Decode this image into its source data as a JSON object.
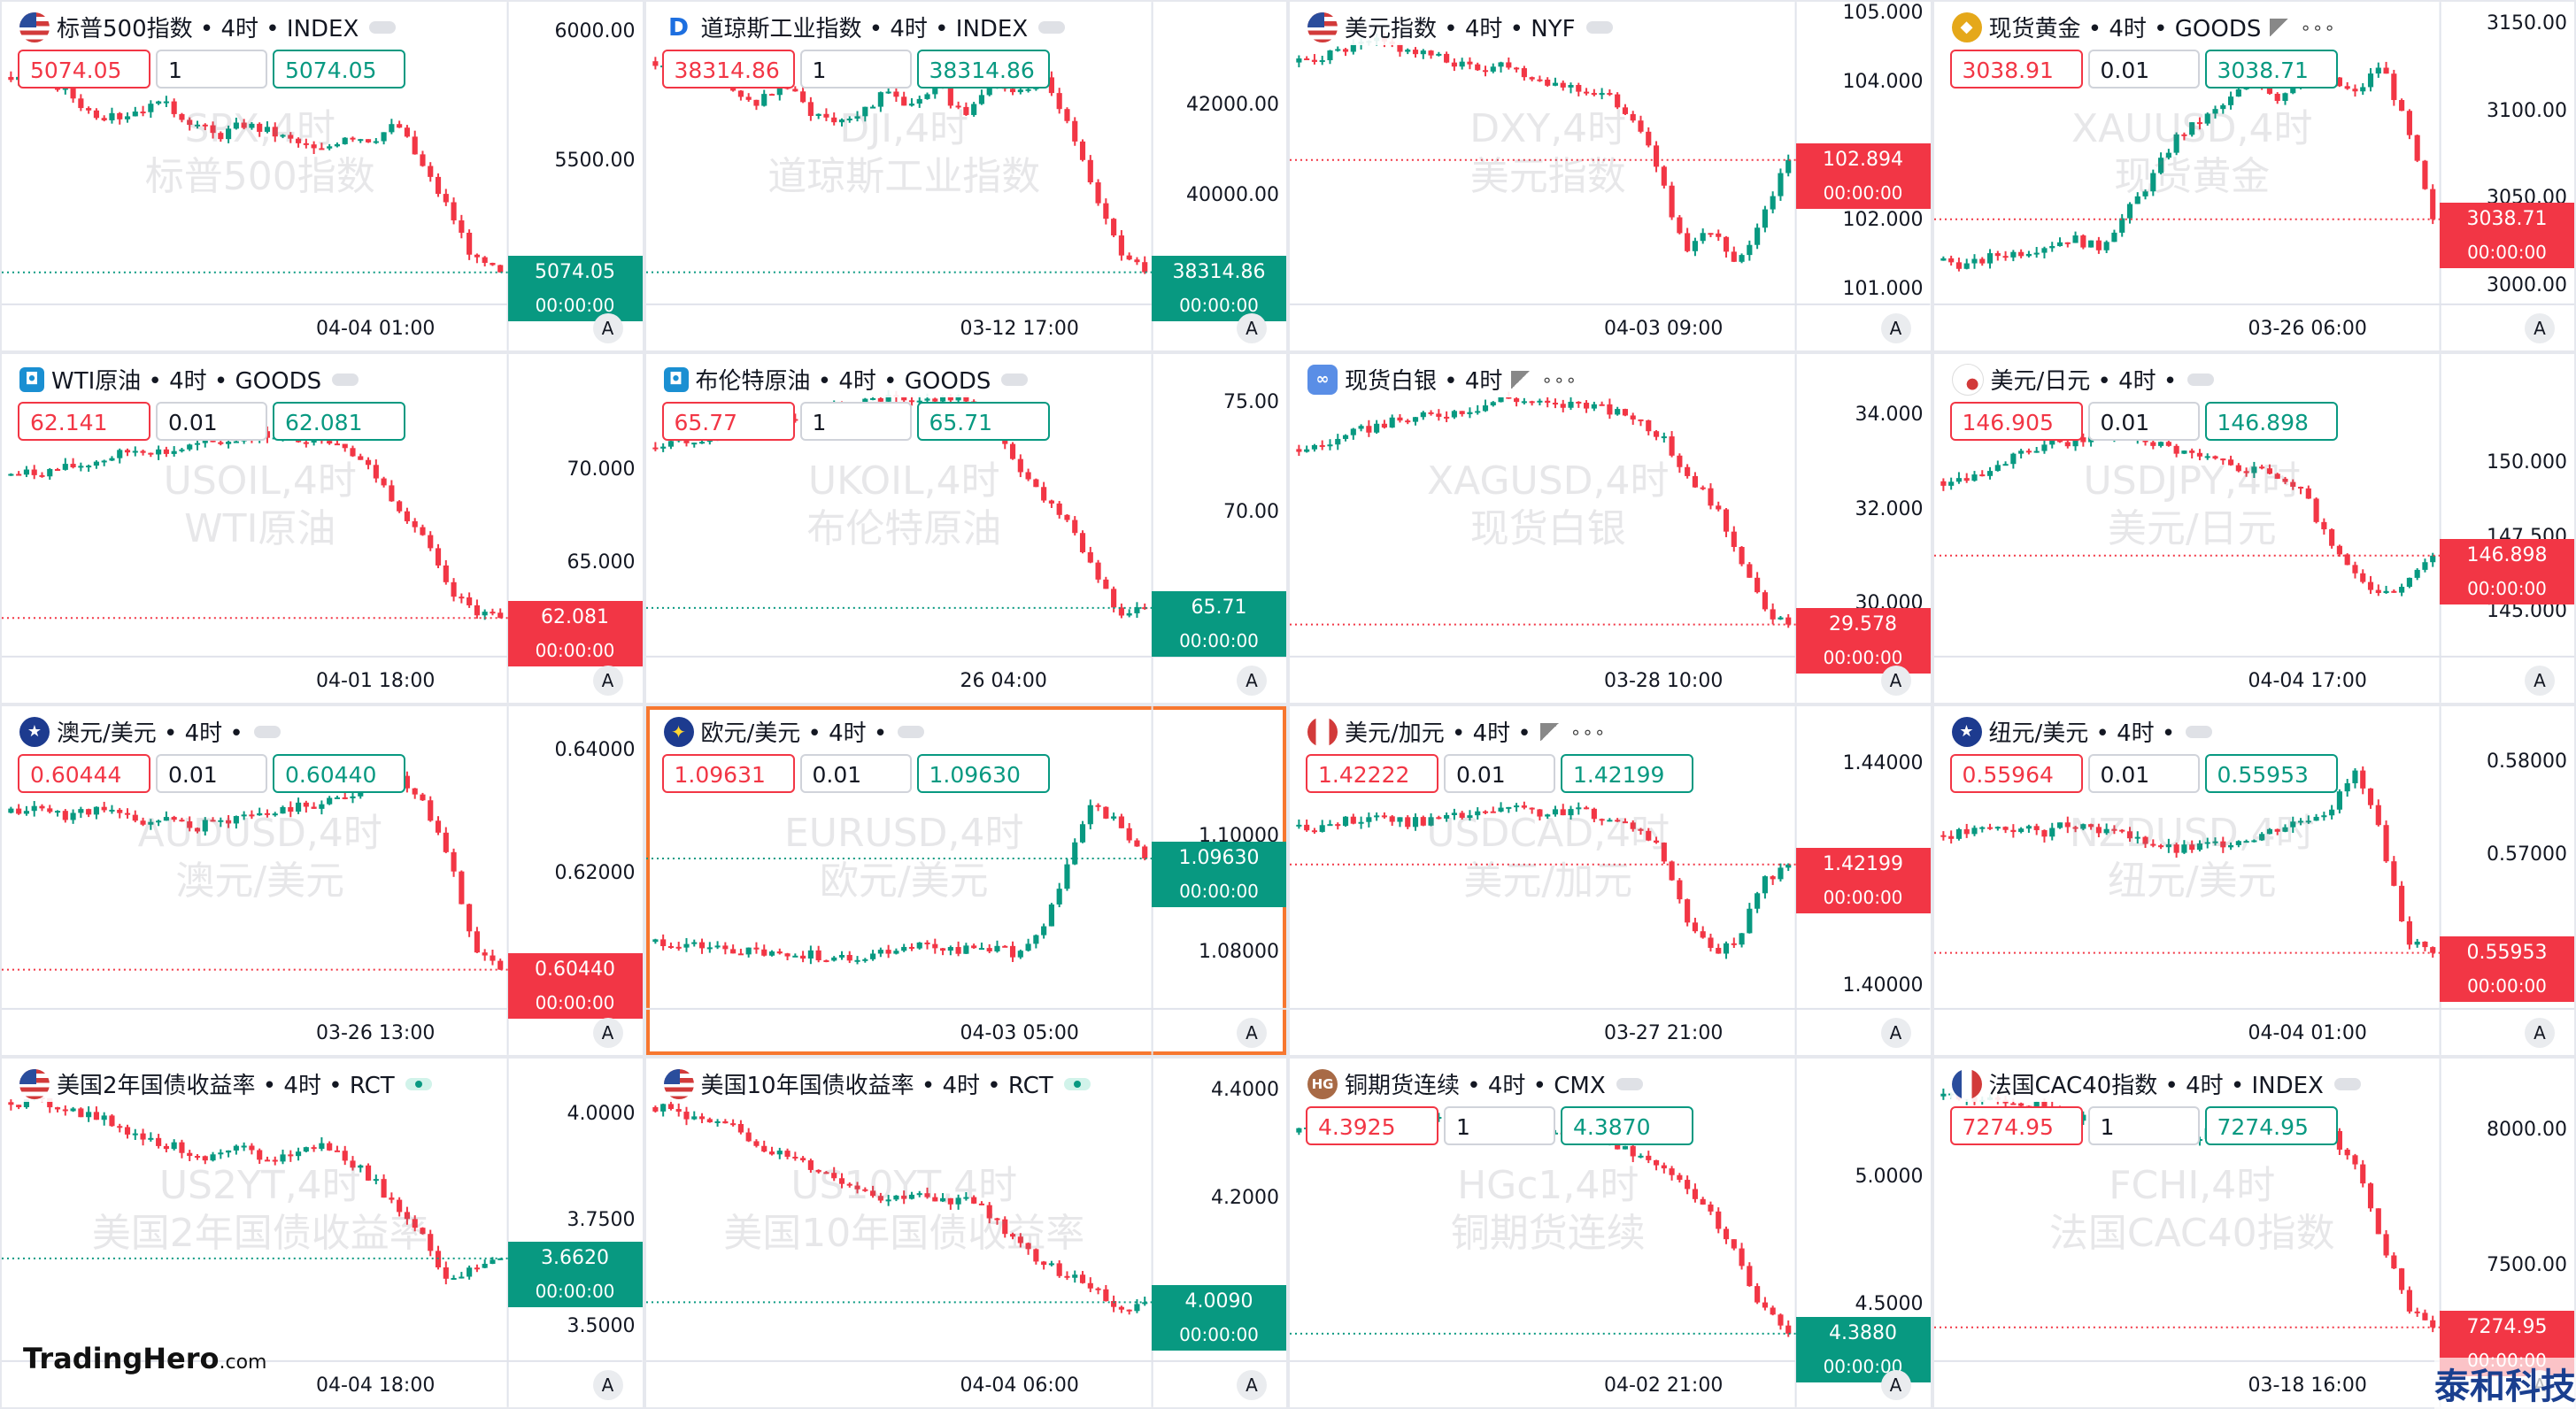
{
  "colors": {
    "up": "#089981",
    "down": "#f23645",
    "accent": "#f7772f"
  },
  "brand": {
    "logo_main": "TradingHero",
    "logo_suffix": ".com",
    "corner_text": "泰和科技"
  },
  "charts": [
    {
      "title": "标普500指数 • 4时 • INDEX",
      "flag": "us-flag",
      "flag_text": "",
      "pill": "grey",
      "extra": "",
      "sell": "5074.05",
      "qty": "1",
      "buy": "5074.05",
      "wm1": "SPX,4时",
      "wm2": "标普500指数",
      "ticks": [
        "6000.00",
        "5500.00"
      ],
      "price": "5074.05",
      "countdown": "00:00:00",
      "tagColor": "up",
      "time": "04-04 01:00",
      "ylim": [
        4950,
        6100
      ],
      "levels": [
        5830,
        5810,
        5790,
        5700,
        5670,
        5710,
        5720,
        5660,
        5600,
        5650,
        5620,
        5580,
        5540,
        5610,
        5590,
        5650,
        5480,
        5320,
        5120,
        5074
      ]
    },
    {
      "title": "道琼斯工业指数 • 4时 • INDEX",
      "flag": "dj-flag",
      "flag_text": "D",
      "pill": "grey",
      "extra": "",
      "sell": "38314.86",
      "qty": "1",
      "buy": "38314.86",
      "wm1": "DJI,4时",
      "wm2": "道琼斯工业指数",
      "ticks": [
        "42000.00",
        "40000.00"
      ],
      "price": "38314.86",
      "countdown": "00:00:00",
      "tagColor": "up",
      "time": "03-12 17:00",
      "ylim": [
        37600,
        44200
      ],
      "levels": [
        43000,
        42600,
        42800,
        42300,
        42100,
        42500,
        41900,
        41700,
        41900,
        42300,
        42000,
        42400,
        41800,
        42600,
        42200,
        42700,
        41700,
        40200,
        38800,
        38314
      ]
    },
    {
      "title": "美元指数 • 4时 • NYF",
      "flag": "us-flag",
      "flag_text": "",
      "pill": "grey",
      "extra": "",
      "sell": "",
      "qty": "",
      "buy": "",
      "wm1": "DXY,4时",
      "wm2": "美元指数",
      "ticks": [
        "105.000",
        "104.000",
        "102.000",
        "101.000"
      ],
      "price": "102.894",
      "countdown": "00:00:00",
      "tagColor": "down",
      "time": "04-03 09:00",
      "ylim": [
        100.8,
        105.1
      ],
      "levels": [
        104.3,
        104.4,
        104.5,
        104.6,
        104.5,
        104.4,
        104.3,
        104.2,
        104.3,
        104.1,
        104.0,
        103.9,
        103.8,
        103.5,
        102.7,
        101.5,
        101.9,
        101.3,
        102.1,
        102.89
      ]
    },
    {
      "title": "现货黄金 • 4时 • GOODS",
      "flag": "gold-flag",
      "flag_text": "◆",
      "pill": "",
      "extra": "flag-dots",
      "sell": "3038.91",
      "qty": "0.01",
      "buy": "3038.71",
      "wm1": "XAUUSD,4时",
      "wm2": "现货黄金",
      "ticks": [
        "3150.00",
        "3100.00",
        "3050.00",
        "3000.00"
      ],
      "price": "3038.71",
      "countdown": "00:00:00",
      "tagColor": "down",
      "time": "03-26 06:00",
      "ylim": [
        2990,
        3160
      ],
      "levels": [
        3015,
        3012,
        3018,
        3020,
        3024,
        3028,
        3022,
        3040,
        3060,
        3085,
        3095,
        3105,
        3120,
        3108,
        3122,
        3118,
        3110,
        3128,
        3090,
        3038.7
      ]
    },
    {
      "title": "WTI原油 • 4时 • GOODS",
      "flag": "oil-flag",
      "flag_text": "◘",
      "pill": "grey",
      "extra": "",
      "sell": "62.141",
      "qty": "0.01",
      "buy": "62.081",
      "wm1": "USOIL,4时",
      "wm2": "WTI原油",
      "ticks": [
        "70.000",
        "65.000"
      ],
      "price": "62.081",
      "countdown": "00:00:00",
      "tagColor": "down",
      "time": "04-01 18:00",
      "ylim": [
        60,
        76
      ],
      "levels": [
        69.8,
        69.9,
        70.1,
        70.4,
        70.8,
        71.2,
        71.0,
        71.3,
        71.5,
        71.8,
        72.0,
        71.7,
        71.9,
        71.4,
        70.0,
        68.2,
        66.5,
        63.4,
        62.5,
        62.08
      ]
    },
    {
      "title": "布伦特原油 • 4时 • GOODS",
      "flag": "oil-flag",
      "flag_text": "◘",
      "pill": "grey",
      "extra": "",
      "sell": "65.77",
      "qty": "1",
      "buy": "65.71",
      "wm1": "UKOIL,4时",
      "wm2": "布伦特原油",
      "ticks": [
        "75.00",
        "70.00"
      ],
      "price": "65.71",
      "countdown": "00:00:00",
      "tagColor": "up",
      "time": "26 04:00",
      "ylim": [
        63.5,
        77
      ],
      "levels": [
        73.0,
        73.3,
        73.5,
        73.8,
        74.0,
        74.3,
        74.6,
        74.8,
        75.0,
        75.2,
        74.9,
        75.3,
        75.1,
        74.0,
        72.3,
        70.8,
        69.8,
        67.5,
        65.4,
        65.71
      ]
    },
    {
      "title": "现货白银 • 4时",
      "flag": "silver-flag",
      "flag_text": "∞",
      "pill": "",
      "extra": "flag-dots",
      "sell": "",
      "qty": "",
      "buy": "",
      "wm1": "XAGUSD,4时",
      "wm2": "现货白银",
      "ticks": [
        "34.000",
        "32.000",
        "30.000"
      ],
      "price": "29.578",
      "countdown": "00:00:00",
      "tagColor": "down",
      "time": "03-28 10:00",
      "ylim": [
        28.9,
        35.2
      ],
      "levels": [
        33.3,
        33.4,
        33.6,
        33.8,
        33.9,
        34.0,
        34.1,
        34.2,
        34.4,
        34.3,
        34.2,
        34.3,
        34.1,
        34.0,
        33.6,
        32.8,
        32.2,
        31.2,
        29.9,
        29.58
      ]
    },
    {
      "title": "美元/日元 • 4时 •",
      "flag": "usjp-flag",
      "flag_text": "",
      "pill": "grey",
      "extra": "",
      "sell": "146.905",
      "qty": "0.01",
      "buy": "146.898",
      "wm1": "USDJPY,4时",
      "wm2": "美元/日元",
      "ticks": [
        "150.000",
        "147.500",
        "145.000"
      ],
      "price": "146.898",
      "countdown": "00:00:00",
      "tagColor": "down",
      "time": "04-04 17:00",
      "ylim": [
        143.5,
        153.5
      ],
      "levels": [
        149.4,
        149.6,
        149.9,
        150.3,
        150.6,
        150.7,
        150.9,
        151.0,
        150.8,
        150.5,
        150.2,
        150.0,
        149.8,
        149.6,
        149.0,
        147.3,
        146.2,
        145.5,
        145.9,
        146.898
      ]
    },
    {
      "title": "澳元/美元 • 4时 •",
      "flag": "au-flag",
      "flag_text": "★",
      "pill": "grey",
      "extra": "",
      "sell": "0.60444",
      "qty": "0.01",
      "buy": "0.60440",
      "wm1": "AUDUSD,4时",
      "wm2": "澳元/美元",
      "ticks": [
        "0.64000",
        "0.62000"
      ],
      "price": "0.60440",
      "countdown": "00:00:00",
      "tagColor": "down",
      "time": "03-26 13:00",
      "ylim": [
        0.598,
        0.6465
      ],
      "levels": [
        0.63,
        0.631,
        0.6295,
        0.6305,
        0.63,
        0.6285,
        0.629,
        0.6275,
        0.6285,
        0.6295,
        0.63,
        0.631,
        0.6315,
        0.633,
        0.6345,
        0.636,
        0.632,
        0.623,
        0.608,
        0.6044
      ]
    },
    {
      "title": "欧元/美元 • 4时 •",
      "flag": "eu-flag",
      "flag_text": "✦",
      "pill": "grey",
      "extra": "",
      "sell": "1.09631",
      "qty": "0.01",
      "buy": "1.09630",
      "wm1": "EURUSD,4时",
      "wm2": "欧元/美元",
      "ticks": [
        "1.10000",
        "1.08000"
      ],
      "price": "1.09630",
      "countdown": "00:00:00",
      "tagColor": "up",
      "time": "04-03 05:00",
      "ylim": [
        1.0705,
        1.1215
      ],
      "levels": [
        1.082,
        1.0815,
        1.081,
        1.0805,
        1.08,
        1.0795,
        1.08,
        1.079,
        1.0795,
        1.0805,
        1.0815,
        1.081,
        1.0805,
        1.081,
        1.08,
        1.083,
        1.096,
        1.106,
        1.102,
        1.0963
      ]
    },
    {
      "title": "美元/加元 • 4时 •",
      "flag": "ca-flag",
      "flag_text": "",
      "pill": "",
      "extra": "flag-dots",
      "sell": "1.42222",
      "qty": "0.01",
      "buy": "1.42199",
      "wm1": "USDCAD,4时",
      "wm2": "美元/加元",
      "ticks": [
        "1.44000",
        "1.40000"
      ],
      "price": "1.42199",
      "countdown": "00:00:00",
      "tagColor": "down",
      "time": "03-27 21:00",
      "ylim": [
        1.396,
        1.4495
      ],
      "levels": [
        1.429,
        1.4285,
        1.43,
        1.431,
        1.4295,
        1.43,
        1.4305,
        1.431,
        1.432,
        1.4315,
        1.431,
        1.432,
        1.43,
        1.429,
        1.425,
        1.413,
        1.406,
        1.408,
        1.419,
        1.42199
      ]
    },
    {
      "title": "纽元/美元 • 4时 •",
      "flag": "nz-flag",
      "flag_text": "★",
      "pill": "grey",
      "extra": "",
      "sell": "0.55964",
      "qty": "0.01",
      "buy": "0.55953",
      "wm1": "NZDUSD,4时",
      "wm2": "纽元/美元",
      "ticks": [
        "0.58000",
        "0.57000"
      ],
      "price": "0.55953",
      "countdown": "00:00:00",
      "tagColor": "down",
      "time": "04-04 01:00",
      "ylim": [
        0.5535,
        0.5855
      ],
      "levels": [
        0.5722,
        0.5725,
        0.573,
        0.5728,
        0.5725,
        0.5735,
        0.573,
        0.572,
        0.5715,
        0.5705,
        0.571,
        0.5715,
        0.572,
        0.573,
        0.574,
        0.575,
        0.579,
        0.572,
        0.561,
        0.55953
      ]
    },
    {
      "title": "美国2年国债收益率 • 4时 • RCT",
      "flag": "us-flag",
      "flag_text": "",
      "pill": "live",
      "extra": "",
      "sell": "",
      "qty": "",
      "buy": "",
      "wm1": "US2YT,4时",
      "wm2": "美国2年国债收益率",
      "ticks": [
        "4.0000",
        "3.7500",
        "3.5000"
      ],
      "price": "3.6620",
      "countdown": "00:00:00",
      "tagColor": "up",
      "time": "04-04 18:00",
      "ylim": [
        3.42,
        4.12
      ],
      "levels": [
        4.03,
        4.03,
        4.02,
        4.0,
        3.98,
        3.95,
        3.93,
        3.91,
        3.9,
        3.92,
        3.89,
        3.91,
        3.93,
        3.9,
        3.85,
        3.78,
        3.72,
        3.6,
        3.64,
        3.662
      ]
    },
    {
      "title": "美国10年国债收益率 • 4时 • RCT",
      "flag": "us-flag",
      "flag_text": "",
      "pill": "live",
      "extra": "",
      "sell": "",
      "qty": "",
      "buy": "",
      "wm1": "US10YT,4时",
      "wm2": "美国10年国债收益率",
      "ticks": [
        "4.4000",
        "4.2000"
      ],
      "price": "4.0090",
      "countdown": "00:00:00",
      "tagColor": "up",
      "time": "04-04 06:00",
      "ylim": [
        3.9,
        4.45
      ],
      "levels": [
        4.37,
        4.36,
        4.34,
        4.33,
        4.3,
        4.28,
        4.26,
        4.24,
        4.22,
        4.2,
        4.21,
        4.19,
        4.21,
        4.17,
        4.12,
        4.08,
        4.06,
        4.04,
        3.99,
        4.009
      ]
    },
    {
      "title": "铜期货连续 • 4时 • CMX",
      "flag": "hg-flag",
      "flag_text": "HG",
      "pill": "grey",
      "extra": "",
      "sell": "4.3925",
      "qty": "1",
      "buy": "4.3870",
      "wm1": "HGc1,4时",
      "wm2": "铜期货连续",
      "ticks": [
        "5.0000",
        "4.5000"
      ],
      "price": "4.3880",
      "countdown": "00:00:00",
      "tagColor": "up",
      "time": "04-02 21:00",
      "ylim": [
        4.28,
        5.45
      ],
      "levels": [
        5.18,
        5.19,
        5.21,
        5.23,
        5.2,
        5.22,
        5.24,
        5.22,
        5.21,
        5.2,
        5.19,
        5.17,
        5.14,
        5.1,
        5.05,
        4.96,
        4.85,
        4.7,
        4.48,
        4.388
      ]
    },
    {
      "title": "法国CAC40指数 • 4时 • INDEX",
      "flag": "fr-flag",
      "flag_text": "",
      "pill": "grey",
      "extra": "",
      "sell": "7274.95",
      "qty": "1",
      "buy": "7274.95",
      "wm1": "FCHI,4时",
      "wm2": "法国CAC40指数",
      "ticks": [
        "8000.00",
        "7500.00"
      ],
      "price": "7274.95",
      "countdown": "00:00:00",
      "tagColor": "down",
      "time": "03-18 16:00",
      "ylim": [
        7150,
        8250
      ],
      "levels": [
        8130,
        8120,
        8110,
        8100,
        8090,
        8060,
        8030,
        8010,
        8000,
        7980,
        7990,
        8030,
        8070,
        8050,
        8020,
        8000,
        7870,
        7600,
        7350,
        7274.95
      ]
    }
  ]
}
